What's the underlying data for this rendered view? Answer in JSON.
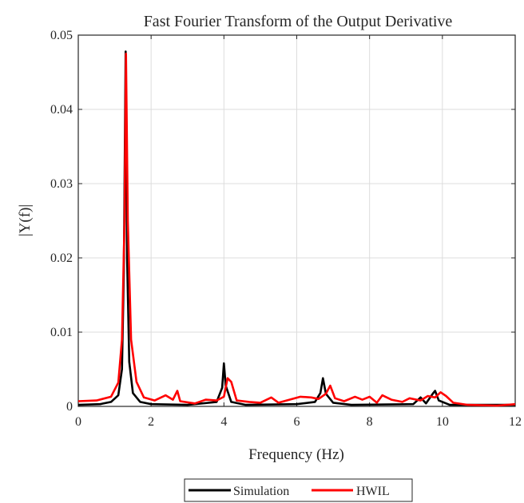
{
  "chart_data": {
    "type": "line",
    "title": "Fast Fourier Transform of the Output Derivative",
    "xlabel": "Frequency (Hz)",
    "ylabel": "|Y(f)|",
    "xlim": [
      0,
      12
    ],
    "ylim": [
      0,
      0.05
    ],
    "xticks": [
      "0",
      "2",
      "4",
      "6",
      "8",
      "10",
      "12"
    ],
    "yticks": [
      "0",
      "0.01",
      "0.02",
      "0.03",
      "0.04",
      "0.05"
    ],
    "grid": true,
    "legend_position": "bottom-center",
    "series": [
      {
        "name": "Simulation",
        "color": "#000000",
        "points": [
          [
            0,
            0.0002
          ],
          [
            0.6,
            0.0003
          ],
          [
            0.9,
            0.0006
          ],
          [
            1.1,
            0.0015
          ],
          [
            1.2,
            0.005
          ],
          [
            1.25,
            0.018
          ],
          [
            1.3,
            0.0478
          ],
          [
            1.34,
            0.02
          ],
          [
            1.4,
            0.006
          ],
          [
            1.5,
            0.0018
          ],
          [
            1.7,
            0.0006
          ],
          [
            2.0,
            0.0003
          ],
          [
            3.0,
            0.0002
          ],
          [
            3.8,
            0.0006
          ],
          [
            3.95,
            0.0025
          ],
          [
            4.0,
            0.0058
          ],
          [
            4.05,
            0.0028
          ],
          [
            4.2,
            0.0006
          ],
          [
            4.6,
            0.0002
          ],
          [
            6.0,
            0.0003
          ],
          [
            6.5,
            0.0006
          ],
          [
            6.65,
            0.0018
          ],
          [
            6.72,
            0.0038
          ],
          [
            6.8,
            0.0017
          ],
          [
            7.0,
            0.0005
          ],
          [
            7.5,
            0.0002
          ],
          [
            9.2,
            0.0003
          ],
          [
            9.4,
            0.0012
          ],
          [
            9.55,
            0.0004
          ],
          [
            9.75,
            0.0018
          ],
          [
            9.8,
            0.0021
          ],
          [
            9.9,
            0.0008
          ],
          [
            10.2,
            0.0002
          ],
          [
            12.0,
            0.0002
          ]
        ]
      },
      {
        "name": "HWIL",
        "color": "#ff0000",
        "points": [
          [
            0,
            0.0007
          ],
          [
            0.5,
            0.0008
          ],
          [
            0.9,
            0.0013
          ],
          [
            1.1,
            0.0032
          ],
          [
            1.2,
            0.009
          ],
          [
            1.27,
            0.025
          ],
          [
            1.31,
            0.0475
          ],
          [
            1.36,
            0.025
          ],
          [
            1.45,
            0.009
          ],
          [
            1.6,
            0.0033
          ],
          [
            1.8,
            0.0012
          ],
          [
            2.1,
            0.0008
          ],
          [
            2.4,
            0.0015
          ],
          [
            2.6,
            0.0009
          ],
          [
            2.72,
            0.0021
          ],
          [
            2.8,
            0.0007
          ],
          [
            3.2,
            0.0004
          ],
          [
            3.5,
            0.0009
          ],
          [
            3.8,
            0.0008
          ],
          [
            4.0,
            0.0013
          ],
          [
            4.1,
            0.0038
          ],
          [
            4.2,
            0.0033
          ],
          [
            4.35,
            0.0008
          ],
          [
            4.7,
            0.0006
          ],
          [
            5.0,
            0.0005
          ],
          [
            5.3,
            0.0012
          ],
          [
            5.5,
            0.0005
          ],
          [
            5.8,
            0.0009
          ],
          [
            6.1,
            0.0013
          ],
          [
            6.4,
            0.0012
          ],
          [
            6.6,
            0.001
          ],
          [
            6.8,
            0.0017
          ],
          [
            6.92,
            0.0028
          ],
          [
            7.05,
            0.0011
          ],
          [
            7.3,
            0.0007
          ],
          [
            7.6,
            0.0013
          ],
          [
            7.8,
            0.0009
          ],
          [
            8.0,
            0.0013
          ],
          [
            8.2,
            0.0005
          ],
          [
            8.35,
            0.0015
          ],
          [
            8.6,
            0.0009
          ],
          [
            8.9,
            0.0006
          ],
          [
            9.1,
            0.0011
          ],
          [
            9.4,
            0.0008
          ],
          [
            9.6,
            0.0014
          ],
          [
            9.8,
            0.0012
          ],
          [
            9.95,
            0.0019
          ],
          [
            10.1,
            0.0014
          ],
          [
            10.3,
            0.0005
          ],
          [
            10.7,
            0.0002
          ],
          [
            11.5,
            0.0001
          ],
          [
            12.0,
            0.0003
          ]
        ]
      }
    ]
  }
}
